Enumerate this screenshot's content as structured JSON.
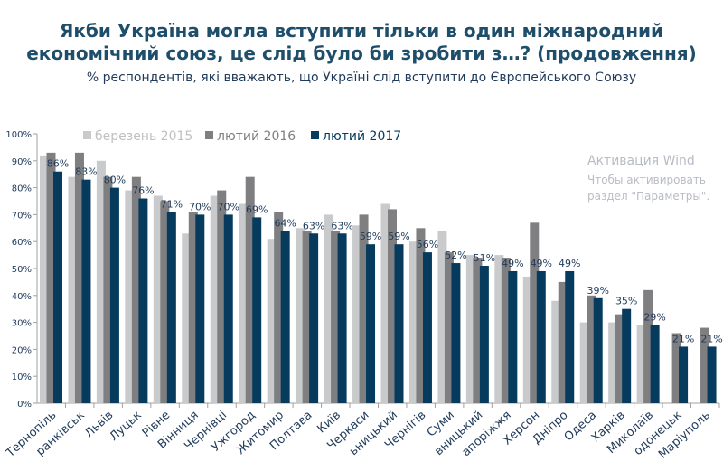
{
  "chart_data": {
    "type": "bar",
    "title": "Якби Україна могла вступити тільки в один міжнародний економічний союз, це слід було би зробити з…? (продовження)",
    "title_line1": "Якби Україна могла вступити тільки в один міжнародний",
    "title_line2": "економічний союз, це слід було би зробити з…? (продовження)",
    "subtitle": "% респондентів, які вважають, що Україні слід вступити до Європейського Союзу",
    "ylim": [
      0,
      100
    ],
    "yticks": [
      "0%",
      "10%",
      "20%",
      "30%",
      "40%",
      "50%",
      "60%",
      "70%",
      "80%",
      "90%",
      "100%"
    ],
    "legend_position": "top",
    "grid": false,
    "categories": [
      "Тернопіль",
      "ранківськ",
      "Львів",
      "Луцьк",
      "Рівне",
      "Вінниця",
      "Чернівці",
      "Ужгород",
      "Житомир",
      "Полтава",
      "Київ",
      "Черкаси",
      "ьницький",
      "Чернігів",
      "Суми",
      "вницький",
      "апоріжжя",
      "Херсон",
      "Дніпро",
      "Одеса",
      "Харків",
      "Миколаїв",
      "одонецьк",
      "Маріуполь"
    ],
    "series": [
      {
        "name": "березень 2015",
        "color": "#c9cacc",
        "values": [
          92,
          84,
          90,
          79,
          77,
          63,
          77,
          74,
          61,
          65,
          70,
          66,
          74,
          60,
          64,
          55,
          55,
          47,
          38,
          30,
          30,
          29,
          null,
          null
        ]
      },
      {
        "name": "лютий 2016",
        "color": "#7f7f81",
        "values": [
          93,
          93,
          84,
          84,
          75,
          71,
          79,
          84,
          71,
          64,
          64,
          70,
          72,
          65,
          56,
          54,
          54,
          67,
          45,
          40,
          33,
          42,
          26,
          28
        ]
      },
      {
        "name": "лютий 2017",
        "color": "#063b5e",
        "values": [
          86,
          83,
          80,
          76,
          71,
          70,
          70,
          69,
          64,
          63,
          63,
          59,
          59,
          56,
          52,
          51,
          49,
          49,
          49,
          39,
          35,
          29,
          21,
          21
        ]
      }
    ],
    "data_labels": [
      "86%",
      "83%",
      "80%",
      "76%",
      "71%",
      "70%",
      "70%",
      "69%",
      "64%",
      "63%",
      "63%",
      "59%",
      "59%",
      "56%",
      "52%",
      "51%",
      "49%",
      "49%",
      "49%",
      "39%",
      "35%",
      "29%",
      "21%",
      "21%"
    ]
  },
  "watermark": {
    "line1": "Активация Wind",
    "line2": "Чтобы активировать",
    "line3": "раздел \"Параметры\"."
  }
}
